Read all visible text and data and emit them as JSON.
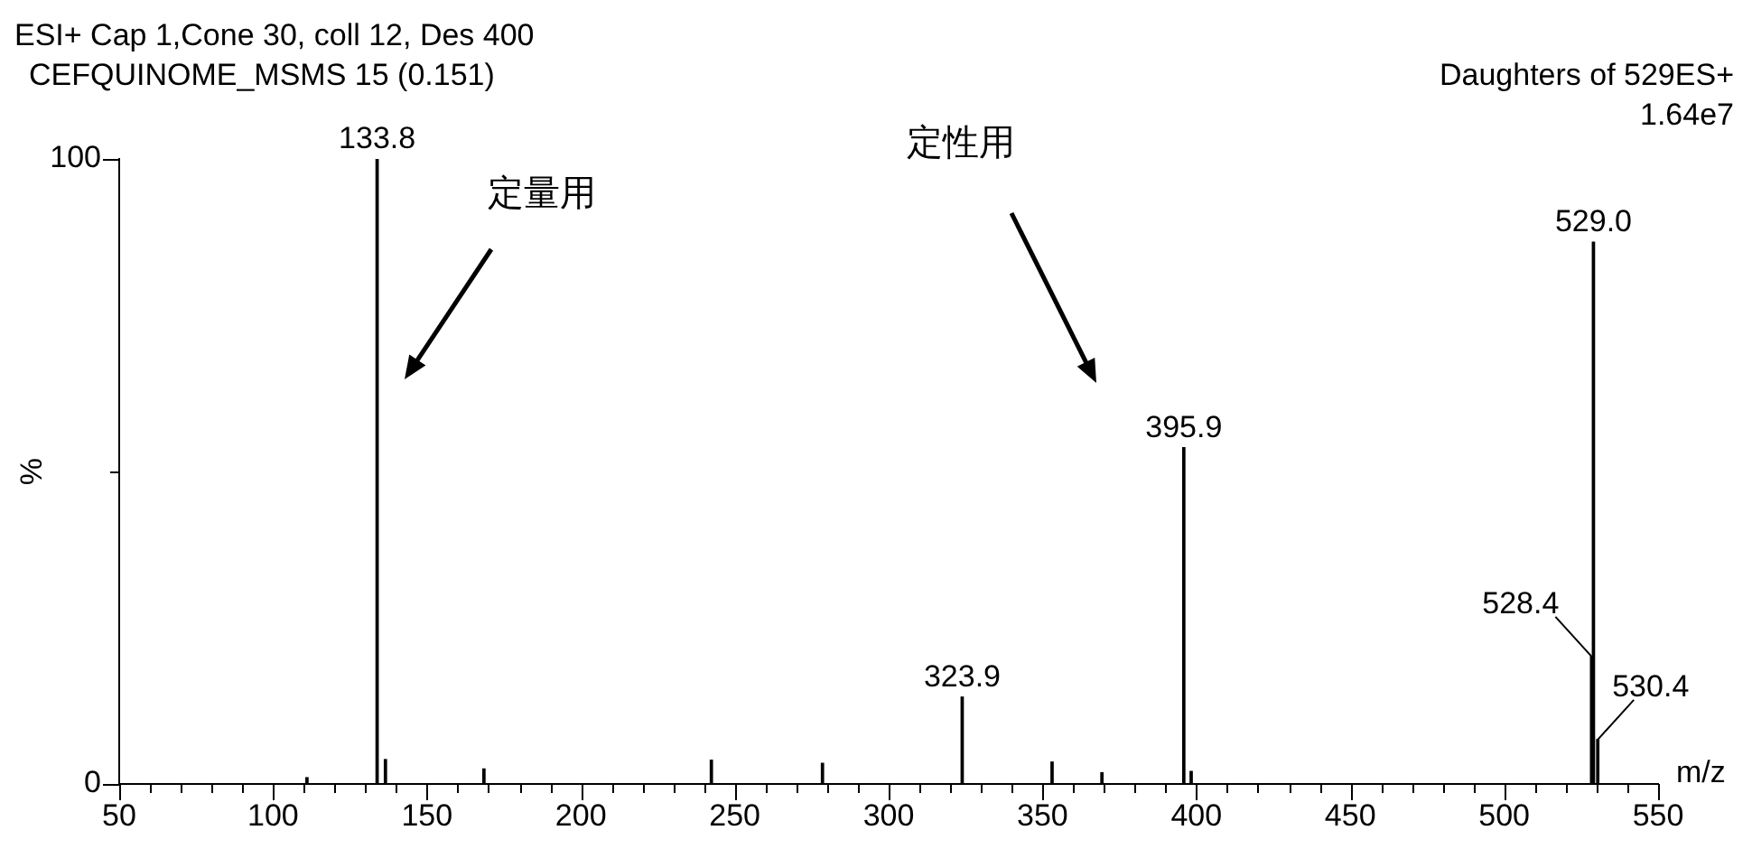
{
  "chart_data": {
    "type": "bar",
    "title": "ESI+ Cap 1,Cone 30, coll 12, Des 400",
    "subtitle": "CEFQUINOME_MSMS 15 (0.151)",
    "xlabel": "m/z",
    "ylabel": "%",
    "annotations": [
      "Daughters of 529ES+",
      "1.64e7",
      "定量用",
      "定性用",
      {
        "text": "133.8",
        "x": 133.8,
        "y": 100
      },
      {
        "text": "323.9",
        "x": 323.9,
        "y": 13.9
      },
      {
        "text": "395.9",
        "x": 395.9,
        "y": 53.8
      },
      {
        "text": "528.4",
        "x": 528.4,
        "y": 20.4
      },
      {
        "text": "529.0",
        "x": 529.0,
        "y": 86.7
      },
      {
        "text": "530.4",
        "x": 530.4,
        "y": 7.1
      }
    ],
    "x": [
      111,
      133.8,
      136.5,
      168.5,
      242.4,
      278.5,
      323.9,
      353.1,
      369.3,
      395.9,
      398.3,
      528.4,
      529.0,
      530.4
    ],
    "series": [
      {
        "color": "#000000",
        "values": [
          1,
          100,
          3.9,
          2.4,
          3.8,
          3.3,
          13.9,
          3.5,
          1.8,
          53.8,
          2,
          20.4,
          86.7,
          7.1
        ]
      }
    ],
    "xlim": [
      50,
      550
    ],
    "xticks": [
      50,
      {
        "value": 60,
        "label": null
      },
      {
        "value": 70,
        "label": null
      },
      {
        "value": 80,
        "label": null
      },
      {
        "value": 90,
        "label": null
      },
      100,
      {
        "value": 110,
        "label": null
      },
      {
        "value": 120,
        "label": null
      },
      {
        "value": 130,
        "label": null
      },
      {
        "value": 140,
        "label": null
      },
      150,
      {
        "value": 160,
        "label": null
      },
      {
        "value": 170,
        "label": null
      },
      {
        "value": 180,
        "label": null
      },
      {
        "value": 190,
        "label": null
      },
      200,
      {
        "value": 210,
        "label": null
      },
      {
        "value": 220,
        "label": null
      },
      {
        "value": 230,
        "label": null
      },
      {
        "value": 240,
        "label": null
      },
      250,
      {
        "value": 260,
        "label": null
      },
      {
        "value": 270,
        "label": null
      },
      {
        "value": 280,
        "label": null
      },
      {
        "value": 290,
        "label": null
      },
      300,
      {
        "value": 310,
        "label": null
      },
      {
        "value": 320,
        "label": null
      },
      {
        "value": 330,
        "label": null
      },
      {
        "value": 340,
        "label": null
      },
      350,
      {
        "value": 360,
        "label": null
      },
      {
        "value": 370,
        "label": null
      },
      {
        "value": 380,
        "label": null
      },
      {
        "value": 390,
        "label": null
      },
      400,
      {
        "value": 410,
        "label": null
      },
      {
        "value": 420,
        "label": null
      },
      {
        "value": 430,
        "label": null
      },
      {
        "value": 440,
        "label": null
      },
      450,
      {
        "value": 460,
        "label": null
      },
      {
        "value": 470,
        "label": null
      },
      {
        "value": 480,
        "label": null
      },
      {
        "value": 490,
        "label": null
      },
      500,
      {
        "value": 510,
        "label": null
      },
      {
        "value": 520,
        "label": null
      },
      {
        "value": 530,
        "label": null
      },
      {
        "value": 540,
        "label": null
      },
      550
    ],
    "ylim": [
      0,
      100
    ],
    "yticks": [
      0,
      {
        "value": 50,
        "label": null
      },
      100
    ],
    "grid": false,
    "legend": false
  }
}
